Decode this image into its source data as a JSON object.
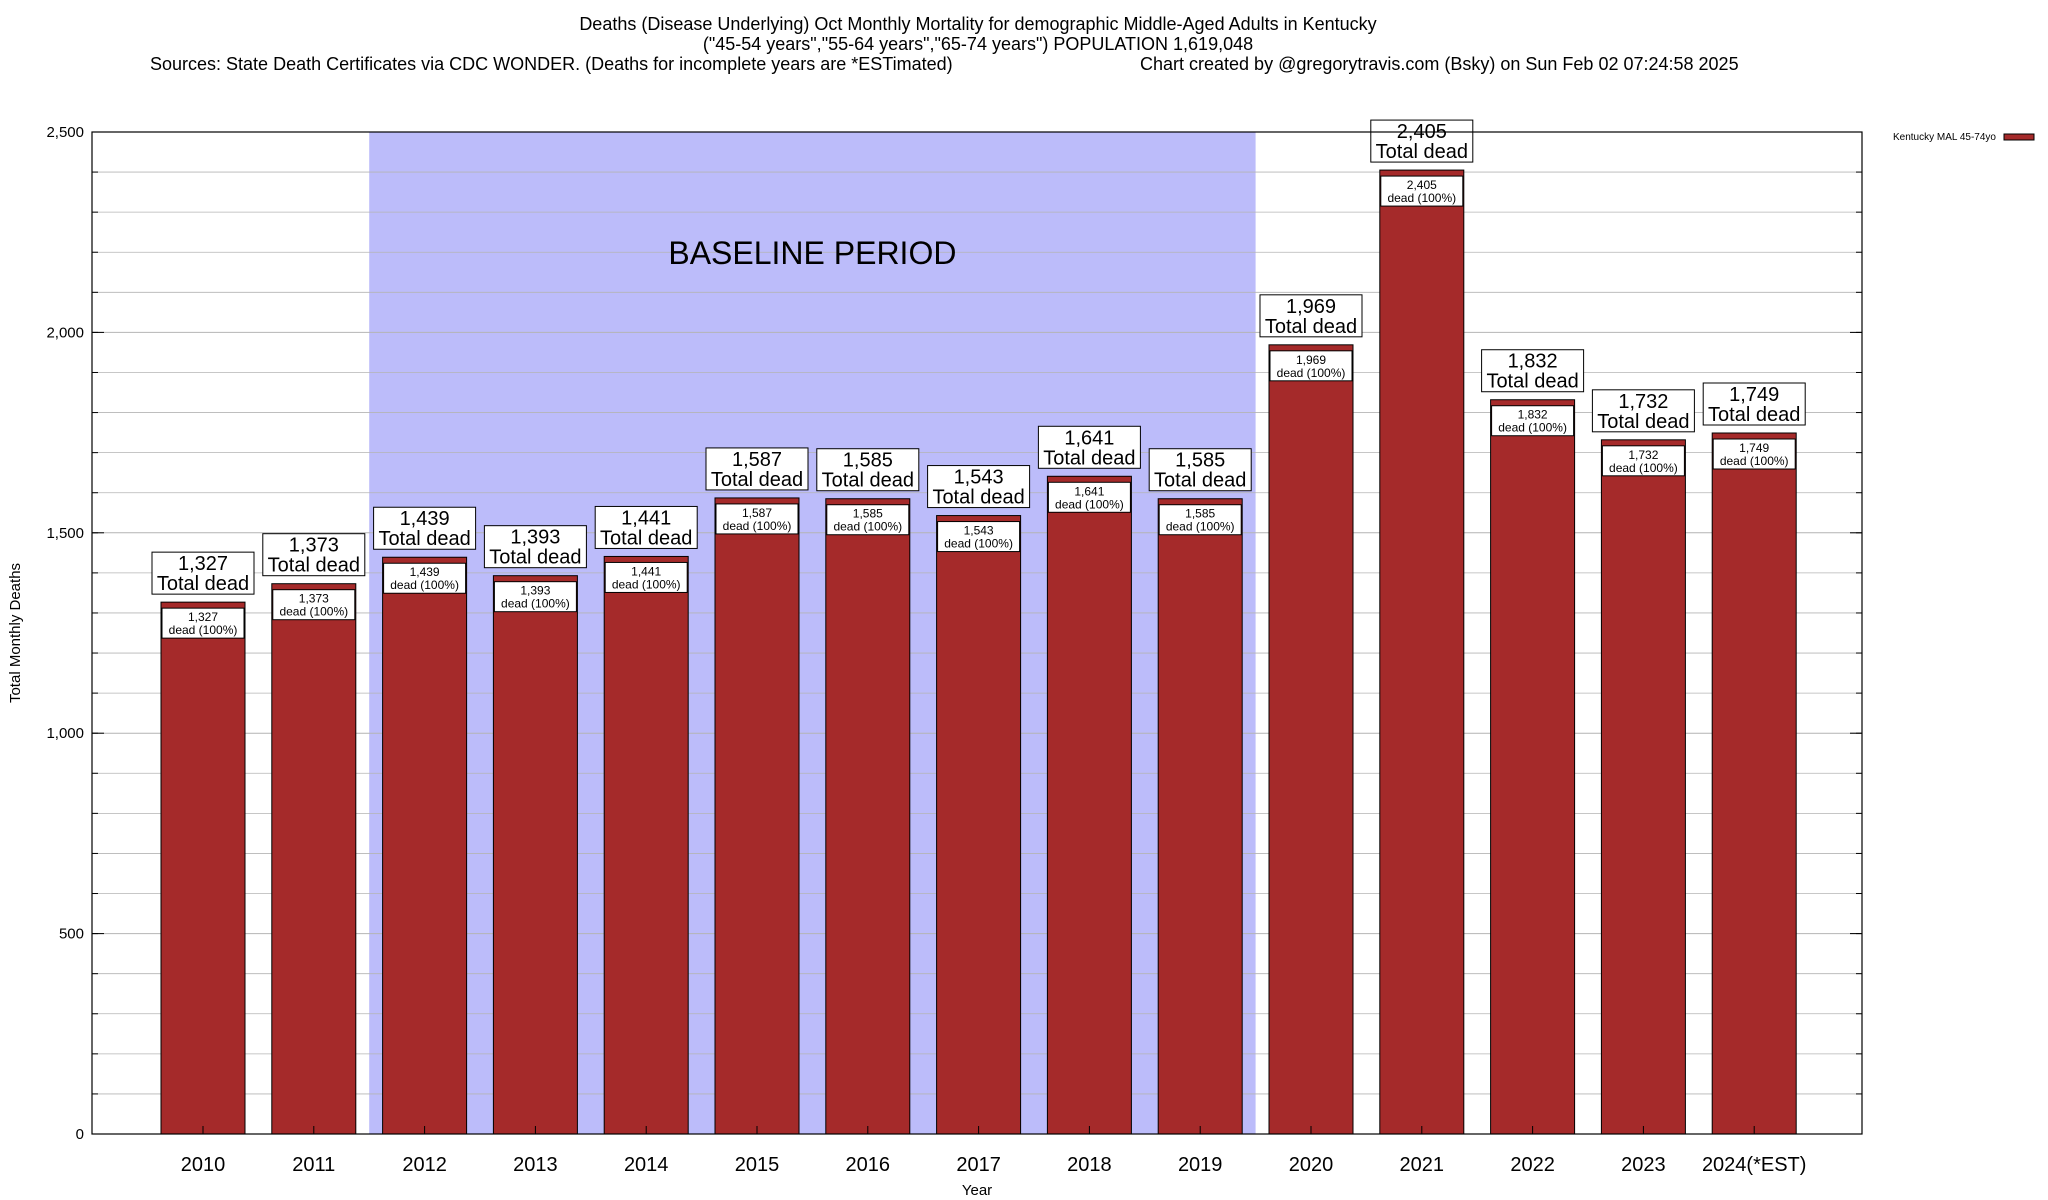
{
  "title": {
    "line1": "Deaths (Disease Underlying) Oct Monthly Mortality for demographic Middle-Aged Adults in Kentucky",
    "line2": "(\"45-54 years\",\"55-64 years\",\"65-74 years\") POPULATION 1,619,048",
    "line3_left": "Sources: State Death Certificates via CDC WONDER. (Deaths for incomplete years are *ESTimated)",
    "line3_right": "Chart created by @gregorytravis.com (Bsky) on Sun Feb 02 07:24:58 2025"
  },
  "baseline_label": "BASELINE PERIOD",
  "colors": {
    "bar": "#a52a2a",
    "baseline_shade": "#bcbcfa",
    "grid": "#b4b4b4"
  },
  "chart_data": {
    "type": "bar",
    "title": "Deaths (Disease Underlying) Oct Monthly Mortality for demographic Middle-Aged Adults in Kentucky",
    "xlabel": "Year",
    "ylabel": "Total Monthly Deaths",
    "ylim": [
      0,
      2500
    ],
    "yticks": [
      0,
      500,
      1000,
      1500,
      2000,
      2500
    ],
    "ytick_labels": [
      "0",
      "500",
      "1,000",
      "1,500",
      "2,000",
      "2,500"
    ],
    "minor_step": 100,
    "categories": [
      "2010",
      "2011",
      "2012",
      "2013",
      "2014",
      "2015",
      "2016",
      "2017",
      "2018",
      "2019",
      "2020",
      "2021",
      "2022",
      "2023",
      "2024(*EST)"
    ],
    "values": [
      1327,
      1373,
      1439,
      1393,
      1441,
      1587,
      1585,
      1543,
      1641,
      1585,
      1969,
      2405,
      1832,
      1732,
      1749
    ],
    "value_labels": [
      "1,327",
      "1,373",
      "1,439",
      "1,393",
      "1,441",
      "1,587",
      "1,585",
      "1,543",
      "1,641",
      "1,585",
      "1,969",
      "2,405",
      "1,832",
      "1,732",
      "1,749"
    ],
    "total_label": "Total dead",
    "inner_label_suffix": "dead (100%)",
    "baseline_period": [
      "2012",
      "2019"
    ],
    "legend": {
      "entry": "Kentucky MAL 45-74yo",
      "placement": "top-right, outside plot"
    },
    "grid": true
  }
}
